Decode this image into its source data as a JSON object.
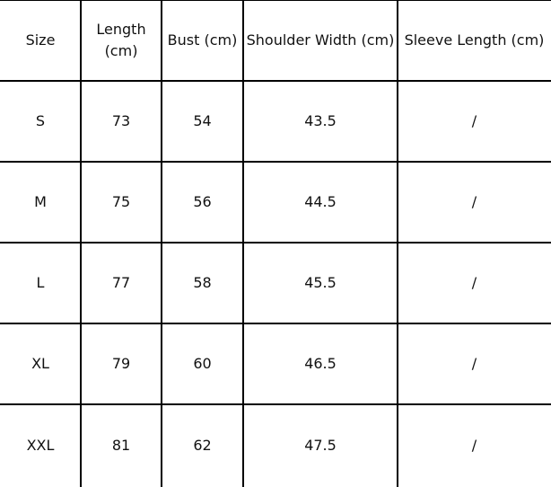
{
  "headers": [
    "Size",
    "Length (cm)",
    "Bust (cm)",
    "Shoulder Width (cm)",
    "Sleeve Length (cm)"
  ],
  "rows": [
    [
      "S",
      "73",
      "54",
      "43.5",
      "/"
    ],
    [
      "M",
      "75",
      "56",
      "44.5",
      "/"
    ],
    [
      "L",
      "77",
      "58",
      "45.5",
      "/"
    ],
    [
      "XL",
      "79",
      "60",
      "46.5",
      "/"
    ],
    [
      "XXL",
      "81",
      "62",
      "47.5",
      "/"
    ]
  ]
}
